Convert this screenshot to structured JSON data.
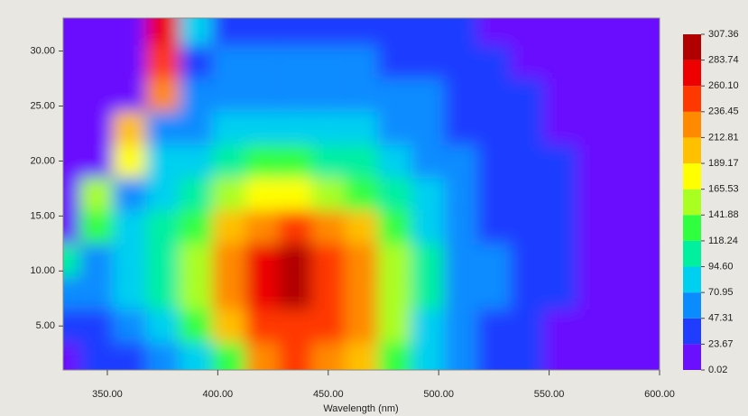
{
  "chart_data": {
    "type": "contour",
    "xlabel": "Wavelength (nm)",
    "x": [
      330,
      345,
      360,
      375,
      390,
      405,
      420,
      435,
      450,
      465,
      480,
      495,
      510,
      525,
      540,
      555,
      570,
      585,
      600
    ],
    "y": [
      2,
      5,
      8,
      11,
      14,
      17,
      20,
      23,
      26,
      29,
      32
    ],
    "z": [
      [
        15,
        25,
        35,
        55,
        80,
        140,
        220,
        240,
        230,
        210,
        130,
        80,
        55,
        40,
        30,
        20,
        5,
        2,
        2
      ],
      [
        25,
        40,
        60,
        90,
        130,
        200,
        240,
        260,
        250,
        225,
        150,
        90,
        60,
        45,
        33,
        22,
        10,
        3,
        2
      ],
      [
        70,
        50,
        75,
        105,
        150,
        215,
        270,
        300,
        260,
        230,
        150,
        95,
        65,
        48,
        35,
        25,
        12,
        4,
        2
      ],
      [
        100,
        60,
        80,
        110,
        155,
        220,
        275,
        295,
        255,
        225,
        145,
        95,
        65,
        48,
        36,
        26,
        14,
        5,
        2
      ],
      [
        5,
        130,
        75,
        100,
        140,
        210,
        235,
        240,
        230,
        200,
        135,
        90,
        63,
        47,
        36,
        26,
        15,
        6,
        2
      ],
      [
        2,
        150,
        70,
        90,
        115,
        150,
        170,
        170,
        160,
        140,
        110,
        80,
        60,
        45,
        35,
        26,
        15,
        6,
        2
      ],
      [
        1,
        3,
        170,
        75,
        90,
        110,
        120,
        120,
        115,
        105,
        90,
        70,
        55,
        42,
        33,
        25,
        14,
        6,
        2
      ],
      [
        1,
        2,
        200,
        60,
        70,
        85,
        92,
        92,
        88,
        80,
        70,
        58,
        47,
        37,
        30,
        22,
        13,
        5,
        2
      ],
      [
        1,
        1,
        20,
        220,
        55,
        65,
        70,
        70,
        68,
        63,
        56,
        48,
        40,
        32,
        26,
        18,
        10,
        4,
        2
      ],
      [
        1,
        1,
        2,
        260,
        45,
        52,
        55,
        55,
        53,
        48,
        43,
        37,
        32,
        25,
        20,
        14,
        8,
        3,
        2
      ],
      [
        1,
        1,
        1,
        280,
        80,
        40,
        42,
        42,
        40,
        37,
        33,
        28,
        24,
        19,
        15,
        10,
        6,
        3,
        2
      ]
    ],
    "xlim": [
      330,
      600
    ],
    "ylim": [
      1,
      33
    ],
    "xticks": [
      {
        "value": 350,
        "label": "350.00"
      },
      {
        "value": 400,
        "label": "400.00"
      },
      {
        "value": 450,
        "label": "450.00"
      },
      {
        "value": 500,
        "label": "500.00"
      },
      {
        "value": 550,
        "label": "550.00"
      },
      {
        "value": 600,
        "label": "600.00"
      }
    ],
    "yticks": [
      {
        "value": 5,
        "label": "5.00"
      },
      {
        "value": 10,
        "label": "10.00"
      },
      {
        "value": 15,
        "label": "15.00"
      },
      {
        "value": 20,
        "label": "20.00"
      },
      {
        "value": 25,
        "label": "25.00"
      },
      {
        "value": 30,
        "label": "30.00"
      }
    ],
    "colorbar_ticks": [
      0.02,
      23.67,
      47.31,
      70.95,
      {
        "value": 94.6,
        "label": "94.60"
      },
      118.24,
      141.88,
      165.53,
      189.17,
      212.81,
      236.45,
      {
        "value": 260.1,
        "label": "260.10"
      },
      283.74,
      307.36
    ],
    "colors": [
      "#6a10ff",
      "#1f3cff",
      "#0a8cff",
      "#00d0f0",
      "#00f0a0",
      "#30ff40",
      "#a8ff20",
      "#ffff00",
      "#ffc000",
      "#ff8a00",
      "#ff3800",
      "#ee0000",
      "#b00000"
    ]
  }
}
